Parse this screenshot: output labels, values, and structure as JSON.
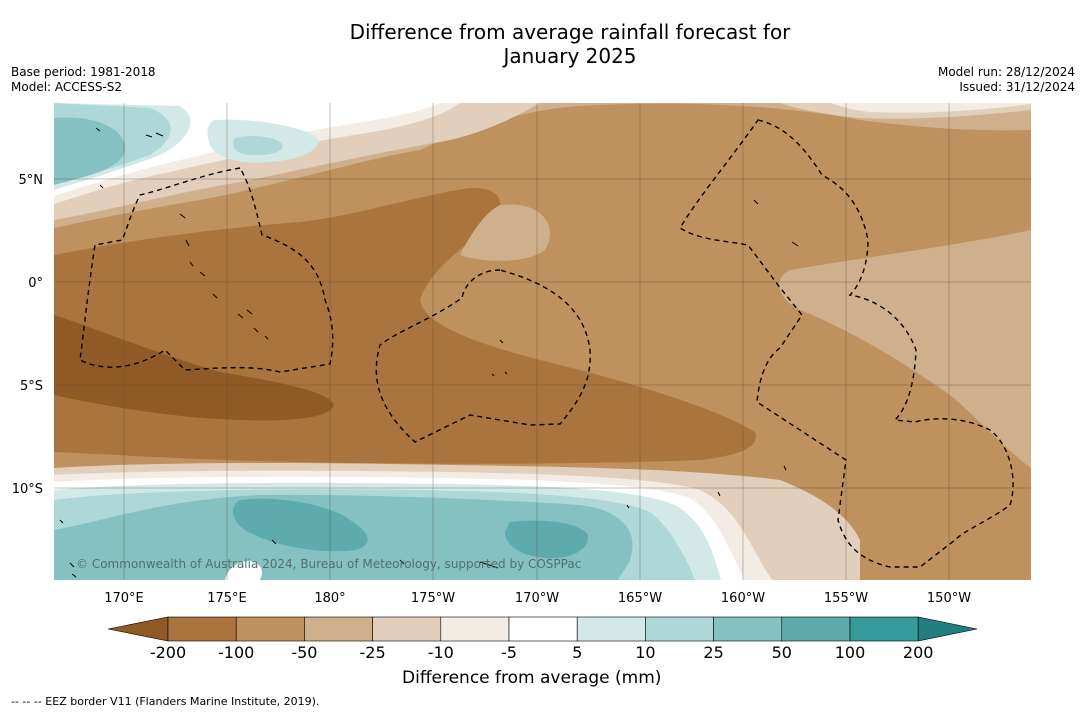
{
  "title_line1": "Difference from average rainfall forecast for",
  "title_line2": "January 2025",
  "base_period": "Base period: 1981-2018",
  "model": "Model: ACCESS-S2",
  "model_run": "Model run: 28/12/2024",
  "issued": "Issued: 31/12/2024",
  "lat_labels": [
    "5°N",
    "0°",
    "5°S",
    "10°S"
  ],
  "lon_labels": [
    "170°E",
    "175°E",
    "180°",
    "175°W",
    "170°W",
    "165°W",
    "160°W",
    "155°W",
    "150°W"
  ],
  "copyright": "© Commonwealth of Australia 2024, Bureau of Meteorology, supported by COSPPac",
  "colorbar": {
    "title": "Difference from average (mm)",
    "ticks": [
      "-200",
      "-100",
      "-50",
      "-25",
      "-10",
      "-5",
      "5",
      "10",
      "25",
      "50",
      "100",
      "200"
    ],
    "colors": [
      "#8f5a26",
      "#a9743e",
      "#be915f",
      "#cfaf8c",
      "#e1cfbb",
      "#f2ece5",
      "#ffffff",
      "#d3e9e8",
      "#aed8d7",
      "#84c1c0",
      "#5eabad",
      "#36999a",
      "#237e81"
    ]
  },
  "eez_legend": "-- -- -- EEZ border V11 (Flanders Marine Institute, 2019)."
}
